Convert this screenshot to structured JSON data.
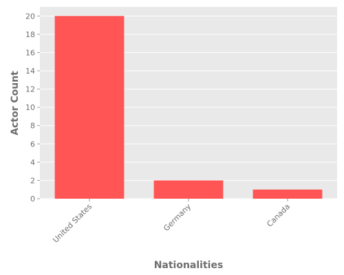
{
  "chart_data": {
    "type": "bar",
    "title": "",
    "xlabel": "Nationalities",
    "ylabel": "Actor Count",
    "categories": [
      "United States",
      "Germany",
      "Canada"
    ],
    "values": [
      20,
      2,
      1
    ],
    "ylim": [
      0,
      21
    ],
    "yticks": [
      0,
      2,
      4,
      6,
      8,
      10,
      12,
      14,
      16,
      18,
      20
    ],
    "grid": true,
    "legend": "none",
    "colors": {
      "bar": "#ff5555",
      "plot_background": "#e9e9e9",
      "grid": "#ffffff",
      "text": "#6e6e6e"
    }
  }
}
